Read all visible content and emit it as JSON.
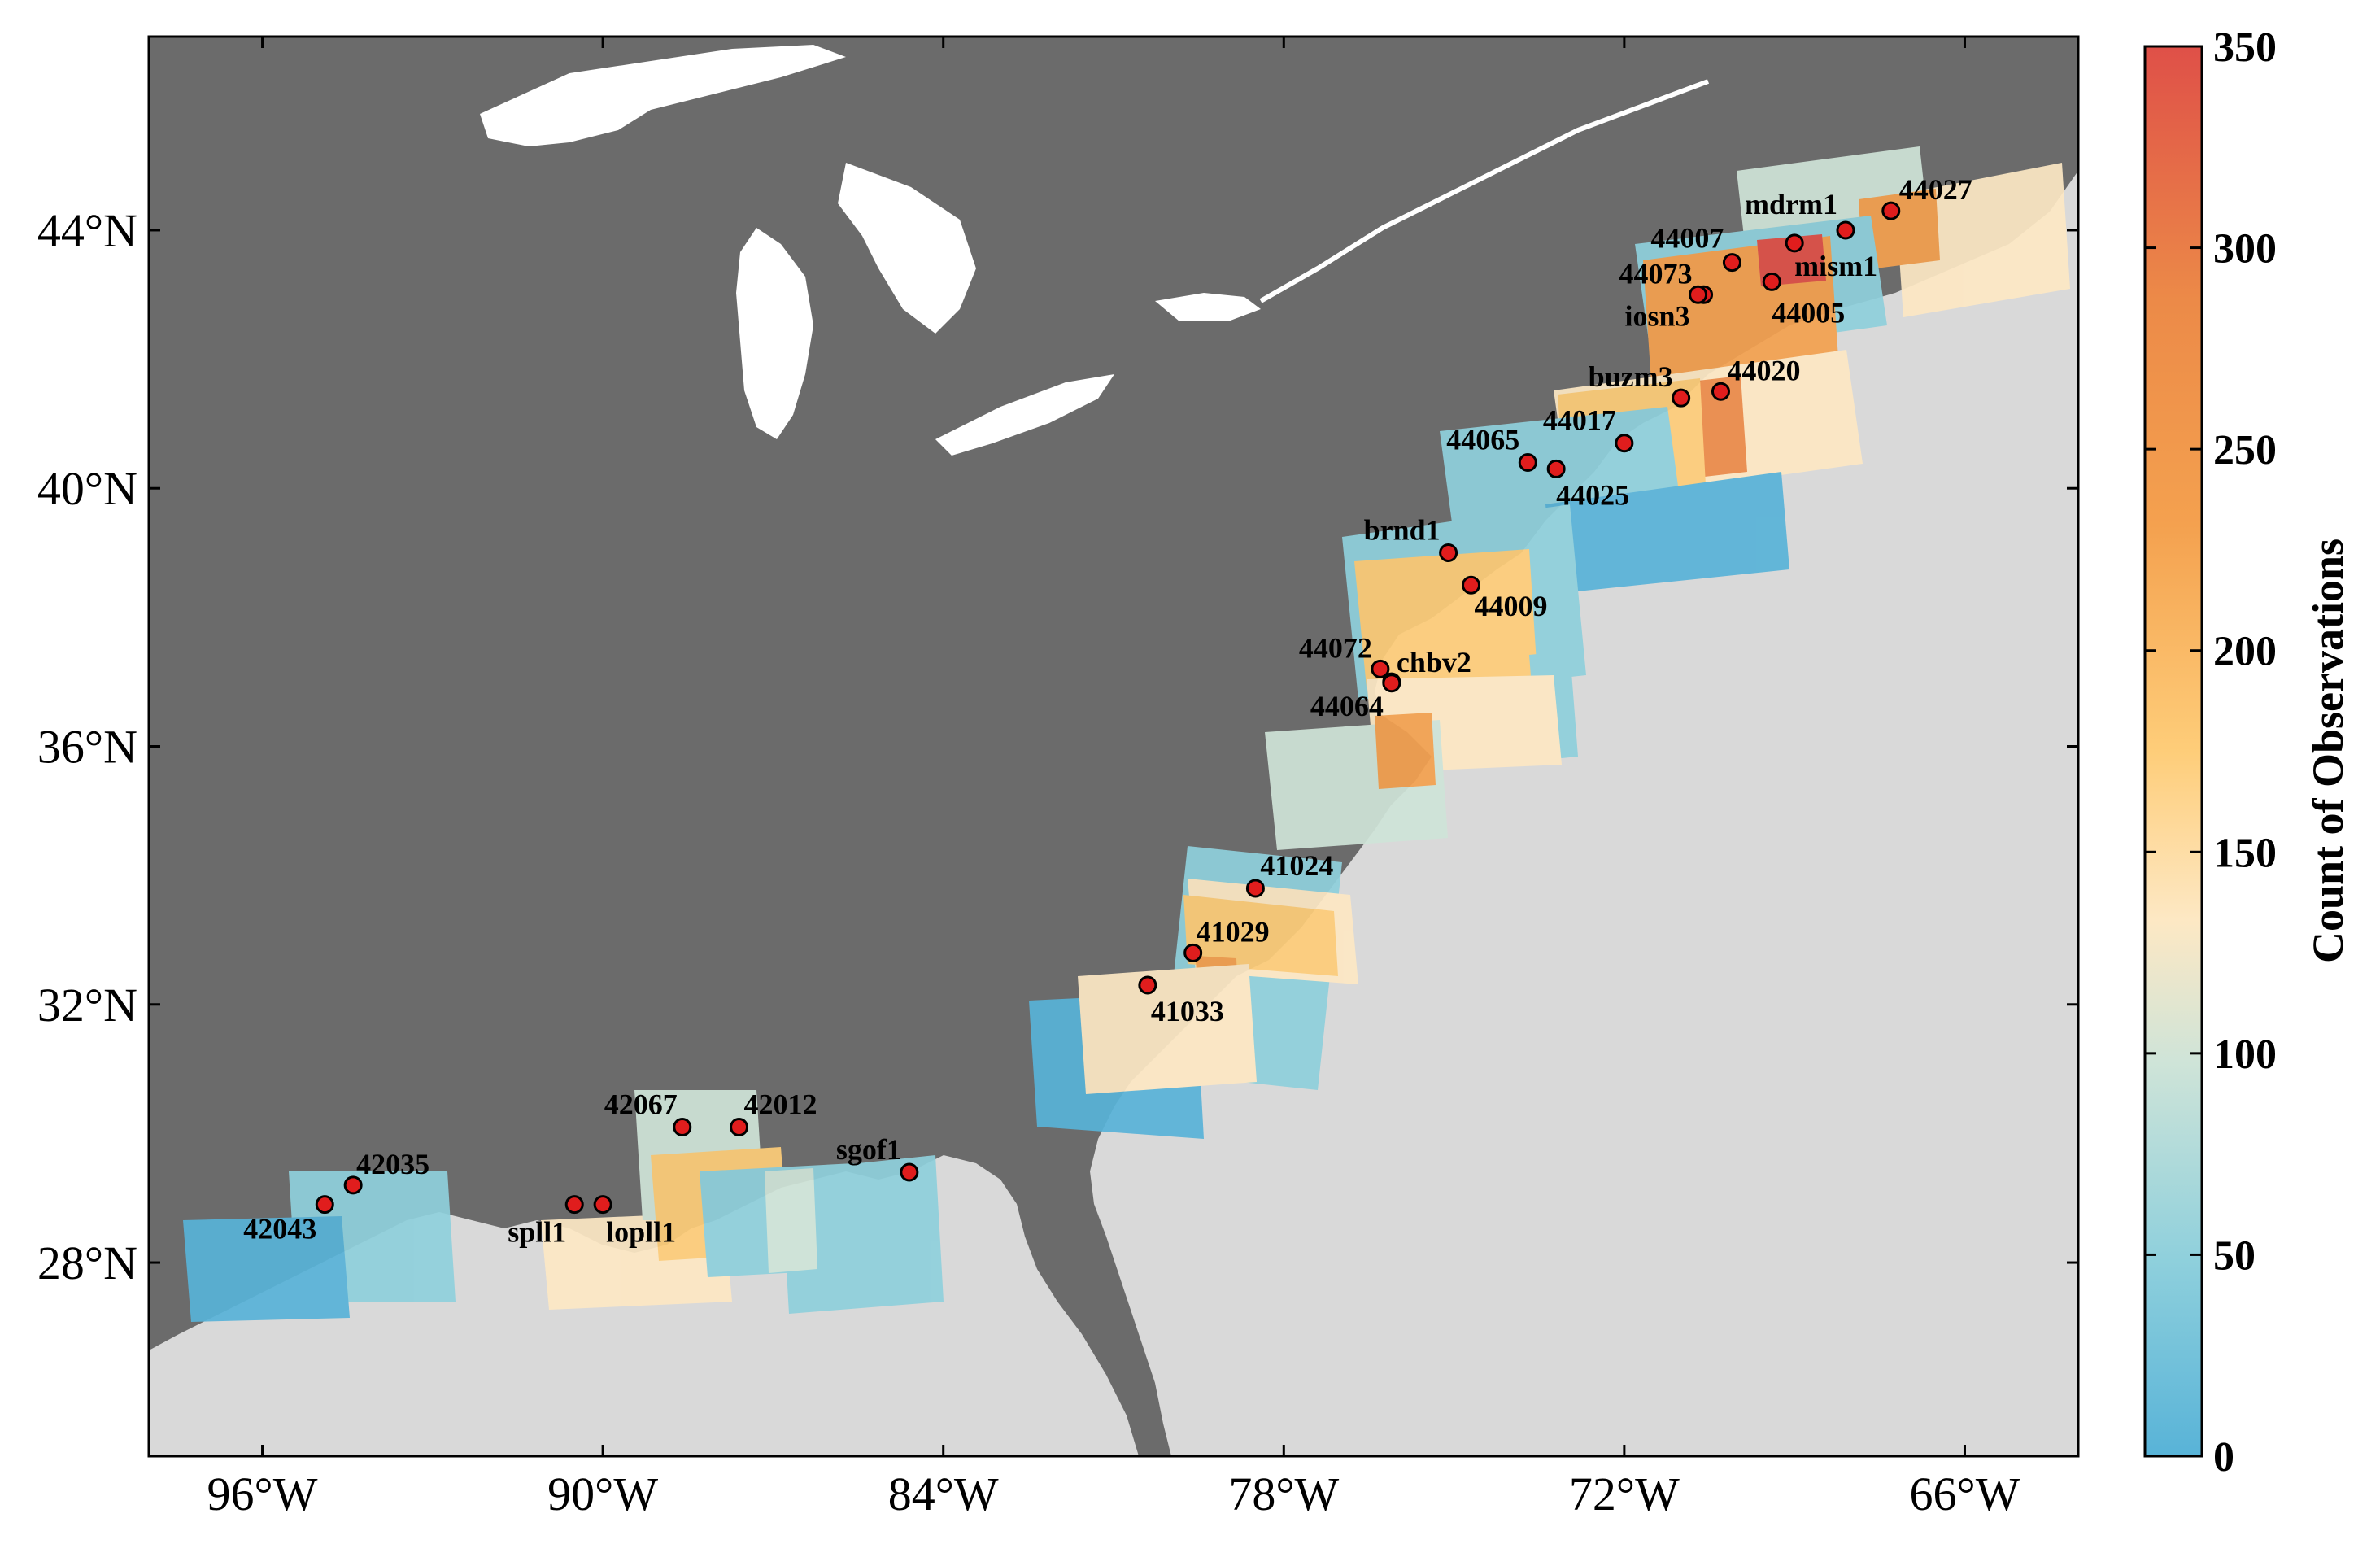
{
  "map": {
    "lon_range": [
      -98,
      -64
    ],
    "lat_range": [
      25,
      47
    ],
    "x_ticks": [
      {
        "value": -96,
        "label": "96°W"
      },
      {
        "value": -90,
        "label": "90°W"
      },
      {
        "value": -84,
        "label": "84°W"
      },
      {
        "value": -78,
        "label": "78°W"
      },
      {
        "value": -72,
        "label": "72°W"
      },
      {
        "value": -66,
        "label": "66°W"
      }
    ],
    "y_ticks": [
      {
        "value": 28,
        "label": "28°N"
      },
      {
        "value": 32,
        "label": "32°N"
      },
      {
        "value": 36,
        "label": "36°N"
      },
      {
        "value": 40,
        "label": "40°N"
      },
      {
        "value": 44,
        "label": "44°N"
      }
    ],
    "colors": {
      "land": "#6b6b6b",
      "ocean": "#d9d9d9",
      "lakes": "#ffffff",
      "station_fill": "#e01d1d",
      "station_stroke": "#000000"
    }
  },
  "colorbar": {
    "title": "Count of Observations",
    "min": 0,
    "max": 350,
    "ticks": [
      {
        "value": 0,
        "label": "0"
      },
      {
        "value": 50,
        "label": "50"
      },
      {
        "value": 100,
        "label": "100"
      },
      {
        "value": 150,
        "label": "150"
      },
      {
        "value": 200,
        "label": "200"
      },
      {
        "value": 250,
        "label": "250"
      },
      {
        "value": 300,
        "label": "300"
      },
      {
        "value": 350,
        "label": "350"
      }
    ],
    "colors": [
      "#58b3d8",
      "#8fd0dc",
      "#cfe4d8",
      "#fde8c4",
      "#fecd79",
      "#f4a14f",
      "#ec8a48",
      "#df5048"
    ]
  },
  "stations": [
    {
      "id": "44027",
      "lon": -67.3,
      "lat": 44.3,
      "label_dx": 0,
      "label_dy": 0
    },
    {
      "id": "mdrm1",
      "lon": -68.1,
      "lat": 44.0
    },
    {
      "id": "44007",
      "lon": -70.1,
      "lat": 43.5
    },
    {
      "id": "mism1",
      "lon": -69.0,
      "lat": 43.8
    },
    {
      "id": "44073",
      "lon": -70.6,
      "lat": 43.0
    },
    {
      "id": "44005",
      "lon": -69.4,
      "lat": 43.2
    },
    {
      "id": "iosn3",
      "lon": -70.7,
      "lat": 43.0
    },
    {
      "id": "buzm3",
      "lon": -71.0,
      "lat": 41.4
    },
    {
      "id": "44020",
      "lon": -70.3,
      "lat": 41.5
    },
    {
      "id": "44017",
      "lon": -72.0,
      "lat": 40.7
    },
    {
      "id": "44065",
      "lon": -73.7,
      "lat": 40.4
    },
    {
      "id": "44025",
      "lon": -73.2,
      "lat": 40.3
    },
    {
      "id": "brnd1",
      "lon": -75.1,
      "lat": 39.0
    },
    {
      "id": "44009",
      "lon": -74.7,
      "lat": 38.5
    },
    {
      "id": "44072",
      "lon": -76.3,
      "lat": 37.2
    },
    {
      "id": "chbv2",
      "lon": -76.1,
      "lat": 37.0
    },
    {
      "id": "44064",
      "lon": -76.1,
      "lat": 36.98
    },
    {
      "id": "41024",
      "lon": -78.5,
      "lat": 33.8
    },
    {
      "id": "41029",
      "lon": -79.6,
      "lat": 32.8
    },
    {
      "id": "41033",
      "lon": -80.4,
      "lat": 32.3
    },
    {
      "id": "42067",
      "lon": -88.6,
      "lat": 30.1
    },
    {
      "id": "42012",
      "lon": -87.6,
      "lat": 30.1
    },
    {
      "id": "sgof1",
      "lon": -84.6,
      "lat": 29.4
    },
    {
      "id": "42035",
      "lon": -94.4,
      "lat": 29.2
    },
    {
      "id": "42043",
      "lon": -94.9,
      "lat": 28.9
    },
    {
      "id": "spll1",
      "lon": -90.5,
      "lat": 28.9
    },
    {
      "id": "lopll1",
      "lon": -90.0,
      "lat": 28.9
    }
  ]
}
